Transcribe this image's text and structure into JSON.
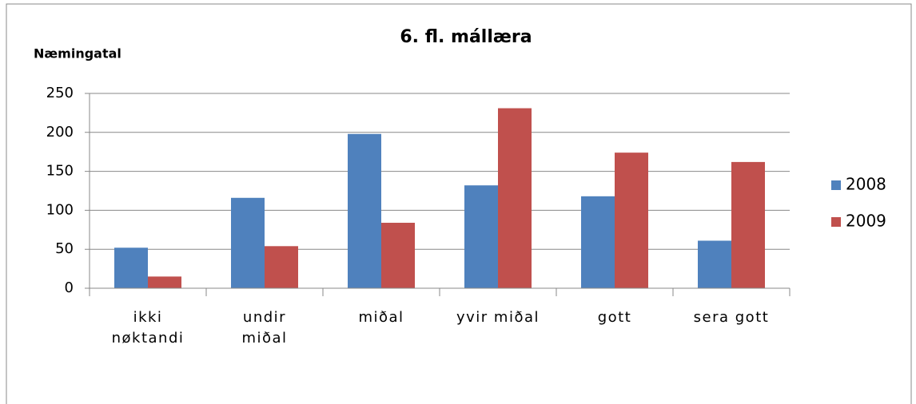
{
  "chart_data": {
    "type": "bar",
    "title": "6. fl. mállæra",
    "y_label": "Næmingatal",
    "categories": [
      "ikki\nnøktandi",
      "undir\nmiðal",
      "miðal",
      "yvir miðal",
      "gott",
      "sera gott"
    ],
    "series": [
      {
        "name": "2008",
        "color": "#4f81bd",
        "values": [
          52,
          116,
          198,
          132,
          118,
          61
        ]
      },
      {
        "name": "2009",
        "color": "#c0504d",
        "values": [
          15,
          54,
          84,
          231,
          174,
          162
        ]
      }
    ],
    "ylim": [
      0,
      250
    ],
    "yticks": [
      0,
      50,
      100,
      150,
      200,
      250
    ],
    "grid": true,
    "legend": "right"
  }
}
